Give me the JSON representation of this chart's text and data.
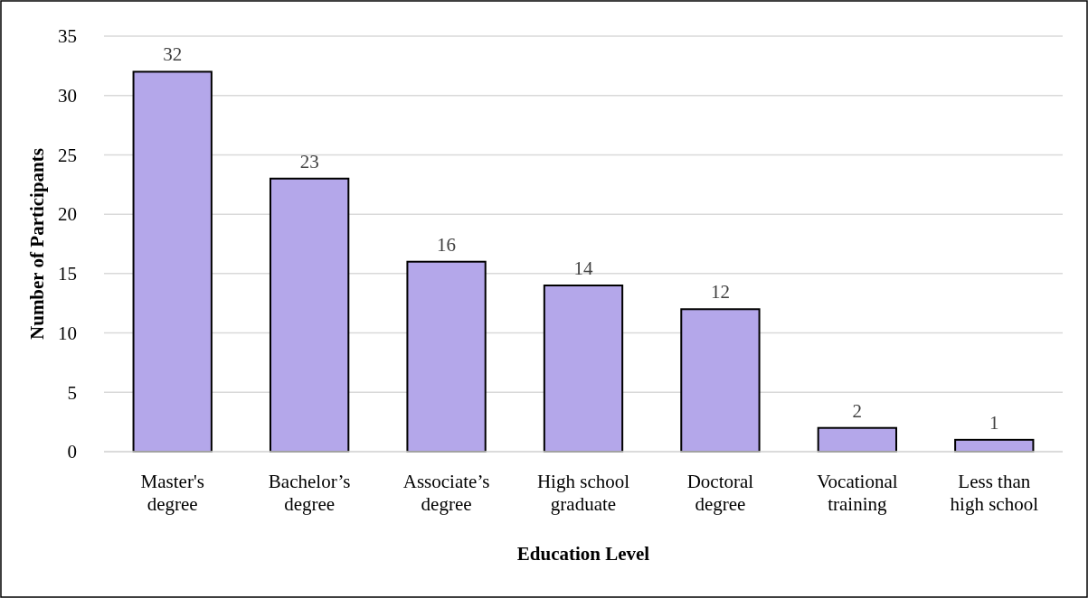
{
  "chart_data": {
    "type": "bar",
    "xlabel": "Education Level",
    "ylabel": "Number of Participants",
    "categories": [
      "Master's\ndegree",
      "Bachelor’s\ndegree",
      "Associate’s\ndegree",
      "High school\ngraduate",
      "Doctoral\ndegree",
      "Vocational\ntraining",
      "Less than\nhigh school"
    ],
    "values": [
      32,
      23,
      16,
      14,
      12,
      2,
      1
    ],
    "color": "#b4a7ea",
    "ylim": [
      0,
      35
    ],
    "yticks": [
      0,
      5,
      10,
      15,
      20,
      25,
      30,
      35
    ],
    "grid": "y",
    "data_labels": true
  }
}
